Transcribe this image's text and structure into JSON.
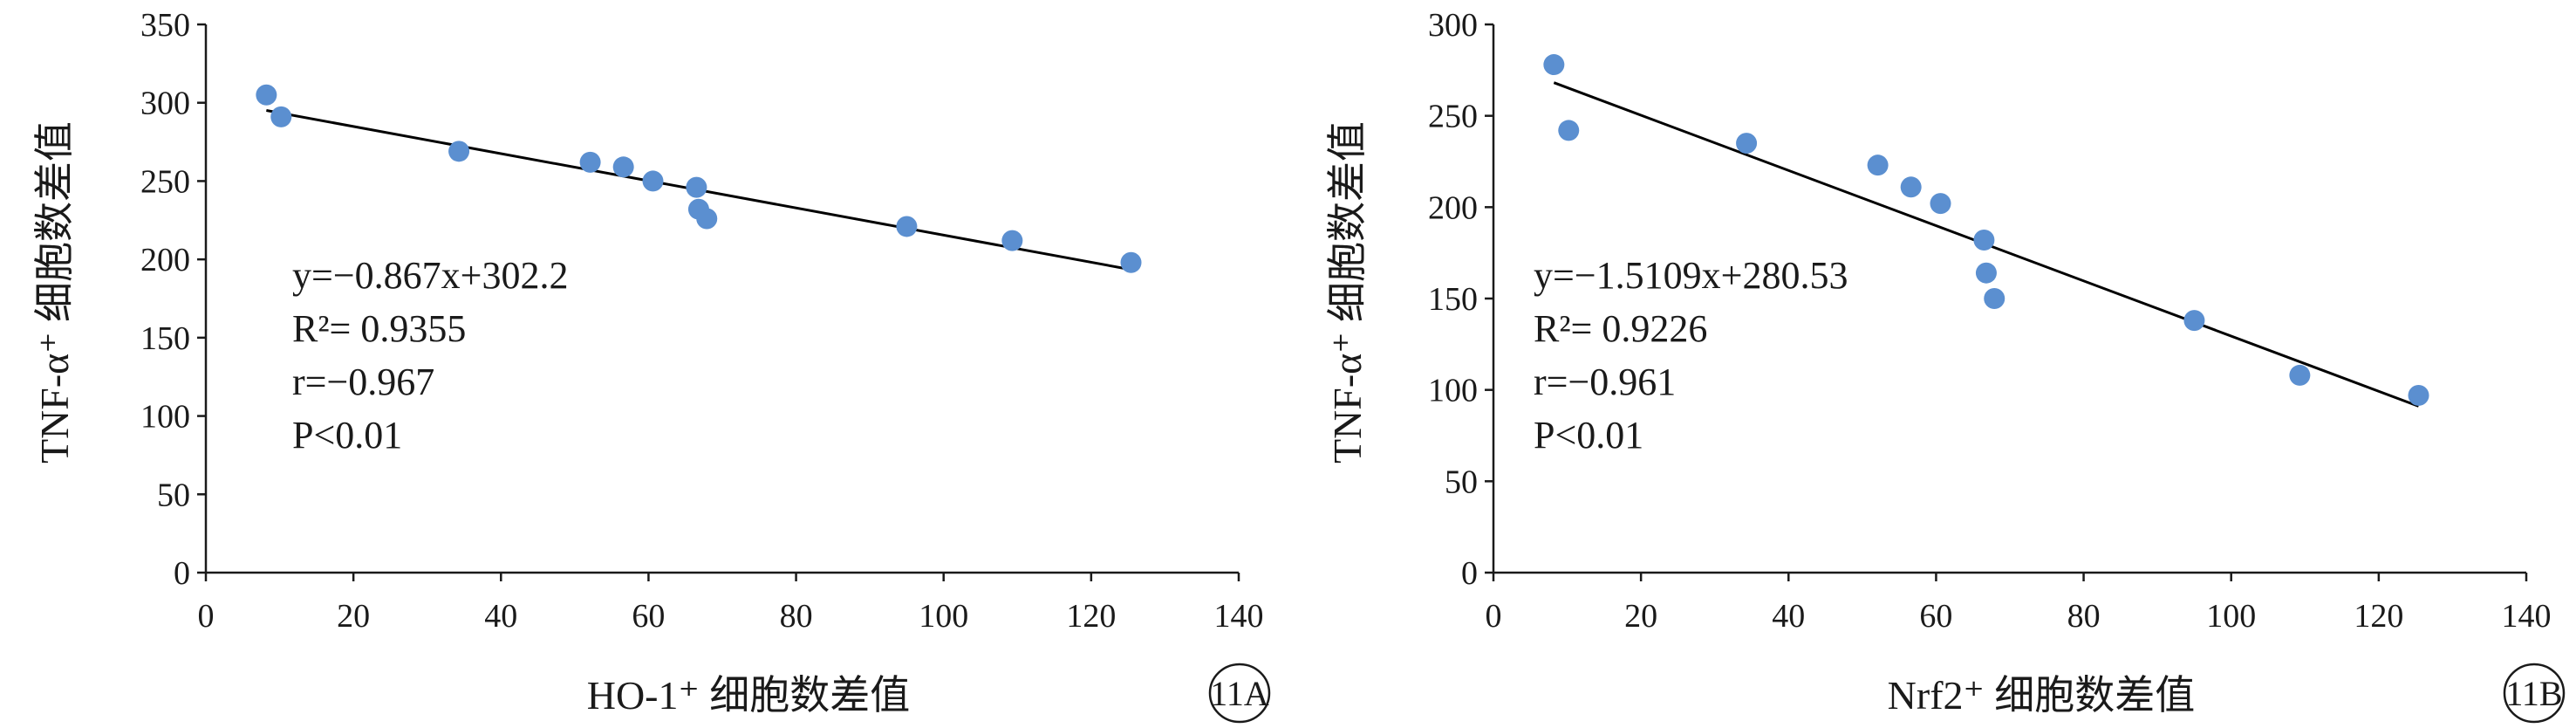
{
  "chart_data": [
    {
      "id": "11A",
      "type": "scatter",
      "badge": "11A",
      "xlabel": "HO-1⁺ 细胞数差值",
      "ylabel": "TNF-α⁺ 细胞数差值",
      "xlim": [
        0,
        140
      ],
      "ylim": [
        0,
        350
      ],
      "xticks": [
        0,
        20,
        40,
        60,
        80,
        100,
        120,
        140
      ],
      "yticks": [
        0,
        50,
        100,
        150,
        200,
        250,
        300,
        350
      ],
      "grid": false,
      "marker_color": "#5b8fd0",
      "line_color": "#000000",
      "points": [
        {
          "x": 8.2,
          "y": 305
        },
        {
          "x": 10.2,
          "y": 291
        },
        {
          "x": 34.3,
          "y": 269
        },
        {
          "x": 52.1,
          "y": 262
        },
        {
          "x": 56.6,
          "y": 259
        },
        {
          "x": 60.6,
          "y": 250
        },
        {
          "x": 66.5,
          "y": 246
        },
        {
          "x": 66.8,
          "y": 232
        },
        {
          "x": 67.9,
          "y": 226
        },
        {
          "x": 95,
          "y": 221
        },
        {
          "x": 109.3,
          "y": 212
        },
        {
          "x": 125.4,
          "y": 198
        }
      ],
      "trendline": {
        "slope": -0.867,
        "intercept": 302.2,
        "x_from": 8.2,
        "x_to": 125.4
      },
      "annotation": {
        "equation": "y=−0.867x+302.2",
        "r2": "R²= 0.9355",
        "r": "r=−0.967",
        "p": "P<0.01"
      }
    },
    {
      "id": "11B",
      "type": "scatter",
      "badge": "11B",
      "xlabel": "Nrf2⁺ 细胞数差值",
      "ylabel": "TNF-α⁺ 细胞数差值",
      "xlim": [
        0,
        140
      ],
      "ylim": [
        0,
        300
      ],
      "xticks": [
        0,
        20,
        40,
        60,
        80,
        100,
        120,
        140
      ],
      "yticks": [
        0,
        50,
        100,
        150,
        200,
        250,
        300
      ],
      "grid": false,
      "marker_color": "#5b8fd0",
      "line_color": "#000000",
      "points": [
        {
          "x": 8.2,
          "y": 278
        },
        {
          "x": 10.2,
          "y": 242
        },
        {
          "x": 34.3,
          "y": 235
        },
        {
          "x": 52.1,
          "y": 223
        },
        {
          "x": 56.6,
          "y": 211
        },
        {
          "x": 60.6,
          "y": 202
        },
        {
          "x": 66.5,
          "y": 182
        },
        {
          "x": 66.8,
          "y": 164
        },
        {
          "x": 67.9,
          "y": 150
        },
        {
          "x": 95,
          "y": 138
        },
        {
          "x": 109.3,
          "y": 108
        },
        {
          "x": 125.4,
          "y": 97
        }
      ],
      "trendline": {
        "slope": -1.5109,
        "intercept": 280.53,
        "x_from": 8.2,
        "x_to": 125.4
      },
      "annotation": {
        "equation": "y=−1.5109x+280.53",
        "r2": "R²= 0.9226",
        "r": "r=−0.961",
        "p": "P<0.01"
      }
    }
  ]
}
